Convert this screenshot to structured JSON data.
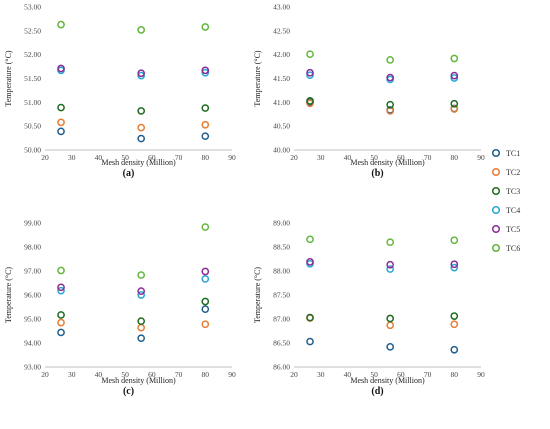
{
  "chart_data": [
    {
      "type": "scatter",
      "panel_label": "(a)",
      "xlabel": "Mesh density (Million)",
      "ylabel": "Temperature (°C)",
      "xlim": [
        20,
        90
      ],
      "xticks": [
        20,
        30,
        40,
        50,
        60,
        70,
        80,
        90
      ],
      "ylim": [
        50.0,
        53.0
      ],
      "yticks": [
        50.0,
        50.5,
        51.0,
        51.5,
        52.0,
        52.5,
        53.0
      ],
      "ytick_decimals": 2,
      "grid": false,
      "x": [
        26,
        56,
        80
      ],
      "series": [
        {
          "name": "TC1",
          "values": [
            50.39,
            50.24,
            50.29
          ]
        },
        {
          "name": "TC2",
          "values": [
            50.58,
            50.47,
            50.53
          ]
        },
        {
          "name": "TC3",
          "values": [
            50.89,
            50.82,
            50.88
          ]
        },
        {
          "name": "TC4",
          "values": [
            51.67,
            51.56,
            51.62
          ]
        },
        {
          "name": "TC5",
          "values": [
            51.71,
            51.61,
            51.67
          ]
        },
        {
          "name": "TC6",
          "values": [
            52.63,
            52.52,
            52.58
          ]
        }
      ]
    },
    {
      "type": "scatter",
      "panel_label": "(b)",
      "xlabel": "Mesh density (Million)",
      "ylabel": "Temperature (°C)",
      "xlim": [
        20,
        90
      ],
      "xticks": [
        20,
        30,
        40,
        50,
        60,
        70,
        80,
        90
      ],
      "ylim": [
        40.0,
        43.0
      ],
      "yticks": [
        40.0,
        40.5,
        41.0,
        41.5,
        42.0,
        42.5,
        43.0
      ],
      "ytick_decimals": 2,
      "grid": false,
      "x": [
        26,
        56,
        80
      ],
      "series": [
        {
          "name": "TC1",
          "values": [
            41.0,
            40.84,
            40.87
          ]
        },
        {
          "name": "TC2",
          "values": [
            40.98,
            40.82,
            40.86
          ]
        },
        {
          "name": "TC3",
          "values": [
            41.03,
            40.95,
            40.97
          ]
        },
        {
          "name": "TC4",
          "values": [
            41.57,
            41.48,
            41.51
          ]
        },
        {
          "name": "TC5",
          "values": [
            41.62,
            41.52,
            41.56
          ]
        },
        {
          "name": "TC6",
          "values": [
            42.01,
            41.89,
            41.92
          ]
        }
      ]
    },
    {
      "type": "scatter",
      "panel_label": "(c)",
      "xlabel": "Mesh density (Million)",
      "ylabel": "Temperature (°C)",
      "xlim": [
        20,
        90
      ],
      "xticks": [
        20,
        30,
        40,
        50,
        60,
        70,
        80,
        90
      ],
      "ylim": [
        93.0,
        99.0
      ],
      "yticks": [
        93.0,
        94.0,
        95.0,
        96.0,
        97.0,
        98.0,
        99.0
      ],
      "ytick_decimals": 2,
      "grid": false,
      "x": [
        26,
        56,
        80
      ],
      "series": [
        {
          "name": "TC1",
          "values": [
            94.44,
            94.2,
            95.41
          ]
        },
        {
          "name": "TC2",
          "values": [
            94.85,
            94.64,
            94.78
          ]
        },
        {
          "name": "TC3",
          "values": [
            95.17,
            94.91,
            95.73
          ]
        },
        {
          "name": "TC4",
          "values": [
            96.18,
            96.0,
            96.67
          ]
        },
        {
          "name": "TC5",
          "values": [
            96.32,
            96.16,
            96.98
          ]
        },
        {
          "name": "TC6",
          "values": [
            97.02,
            96.83,
            98.83
          ]
        }
      ]
    },
    {
      "type": "scatter",
      "panel_label": "(d)",
      "xlabel": "Mesh density (Million)",
      "ylabel": "Temperature (°C)",
      "xlim": [
        20,
        90
      ],
      "xticks": [
        20,
        30,
        40,
        50,
        60,
        70,
        80,
        90
      ],
      "ylim": [
        86.0,
        89.0
      ],
      "yticks": [
        86.0,
        86.5,
        87.0,
        87.5,
        88.0,
        88.5,
        89.0
      ],
      "ytick_decimals": 2,
      "grid": false,
      "x": [
        26,
        56,
        80
      ],
      "series": [
        {
          "name": "TC1",
          "values": [
            86.53,
            86.42,
            86.36
          ]
        },
        {
          "name": "TC2",
          "values": [
            87.02,
            86.87,
            86.89
          ]
        },
        {
          "name": "TC3",
          "values": [
            87.03,
            87.01,
            87.06
          ]
        },
        {
          "name": "TC4",
          "values": [
            88.15,
            88.04,
            88.07
          ]
        },
        {
          "name": "TC5",
          "values": [
            88.19,
            88.13,
            88.14
          ]
        },
        {
          "name": "TC6",
          "values": [
            88.66,
            88.6,
            88.64
          ]
        }
      ]
    }
  ],
  "legend": {
    "placement": "right",
    "items": [
      {
        "name": "TC1",
        "color": "#1f5e8c"
      },
      {
        "name": "TC2",
        "color": "#e67e35"
      },
      {
        "name": "TC3",
        "color": "#1e6a21"
      },
      {
        "name": "TC4",
        "color": "#26a7d8"
      },
      {
        "name": "TC5",
        "color": "#8b2c95"
      },
      {
        "name": "TC6",
        "color": "#63b63e"
      }
    ]
  }
}
